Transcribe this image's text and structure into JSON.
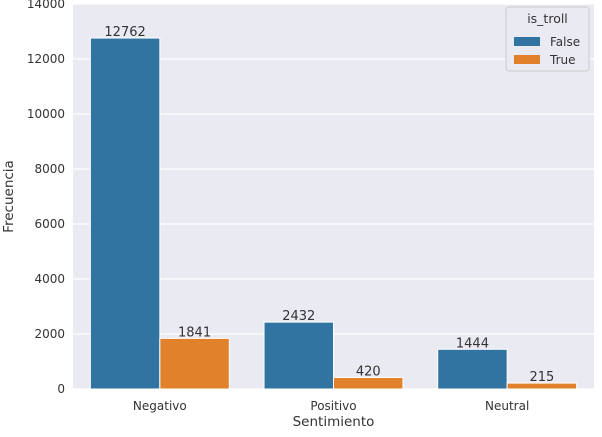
{
  "chart_data": {
    "type": "bar",
    "categories": [
      "Negativo",
      "Positivo",
      "Neutral"
    ],
    "series": [
      {
        "name": "False",
        "values": [
          12762,
          2432,
          1444
        ],
        "color": "#3274a1"
      },
      {
        "name": "True",
        "values": [
          1841,
          420,
          215
        ],
        "color": "#e1812c"
      }
    ],
    "title": "",
    "xlabel": "Sentimiento",
    "ylabel": "Frecuencia",
    "ylim": [
      0,
      14000
    ],
    "yticks": [
      0,
      2000,
      4000,
      6000,
      8000,
      10000,
      12000,
      14000
    ],
    "grid": true,
    "legend": {
      "title": "is_troll",
      "placement": "top-right"
    },
    "background": "#eaeaf2"
  }
}
